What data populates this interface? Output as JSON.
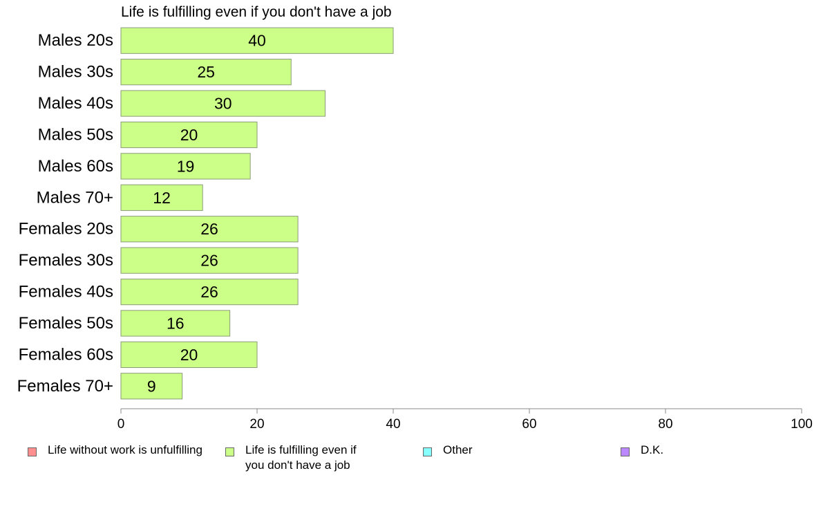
{
  "chart_data": {
    "type": "bar",
    "orientation": "horizontal",
    "title": "Life is fulfilling even if you don't have a job",
    "categories": [
      "Males 20s",
      "Males 30s",
      "Males 40s",
      "Males 50s",
      "Males 60s",
      "Males 70+",
      "Females 20s",
      "Females 30s",
      "Females 40s",
      "Females 50s",
      "Females 60s",
      "Females 70+"
    ],
    "series": [
      {
        "name": "Life is fulfilling even if you don't have a job",
        "values": [
          40,
          25,
          30,
          20,
          19,
          12,
          26,
          26,
          26,
          16,
          20,
          9
        ],
        "labels": [
          "40",
          "25",
          "30",
          "20",
          "19",
          "12",
          "26",
          "26",
          "26",
          "16",
          "20",
          "9"
        ]
      }
    ],
    "xlim": [
      0,
      100
    ],
    "xticks": [
      0,
      20,
      40,
      60,
      80,
      100
    ],
    "grid": false,
    "legend_placement": "bottom",
    "bar_color": "#ccff88",
    "legend": [
      {
        "label": "Life without work is unfulfilling",
        "color": "#ff8e8e"
      },
      {
        "label": "Life is fulfilling even if\nyou don't have a job",
        "color": "#ccff88"
      },
      {
        "label": "Other",
        "color": "#88ffff"
      },
      {
        "label": "D.K.",
        "color": "#bb88ff"
      }
    ]
  }
}
